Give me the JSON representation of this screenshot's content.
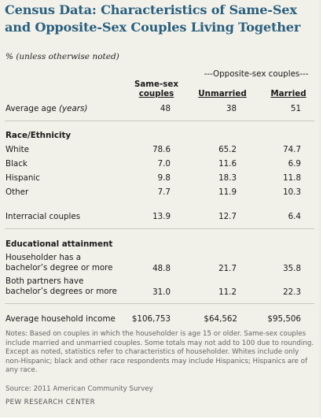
{
  "title": "Census Data: Characteristics of Same-Sex and Opposite-Sex Couples Living Together",
  "units_note": "% (unless otherwise noted)",
  "group_header": "---Opposite-sex couples---",
  "columns": {
    "same_sex_1": "Same-sex",
    "same_sex_2": "couples",
    "unmarried": "Unmarried",
    "married": "Married"
  },
  "rows": {
    "avg_age": {
      "label": "Average age",
      "label_unit": "(years)",
      "same_sex": "48",
      "unmarried": "38",
      "married": "51"
    },
    "race_header": "Race/Ethnicity",
    "white": {
      "label": "White",
      "same_sex": "78.6",
      "unmarried": "65.2",
      "married": "74.7"
    },
    "black": {
      "label": "Black",
      "same_sex": "7.0",
      "unmarried": "11.6",
      "married": "6.9"
    },
    "hispanic": {
      "label": "Hispanic",
      "same_sex": "9.8",
      "unmarried": "18.3",
      "married": "11.8"
    },
    "other": {
      "label": "Other",
      "same_sex": "7.7",
      "unmarried": "11.9",
      "married": "10.3"
    },
    "interracial": {
      "label": "Interracial couples",
      "same_sex": "13.9",
      "unmarried": "12.7",
      "married": "6.4"
    },
    "edu_header": "Educational attainment",
    "householder_ba": {
      "label_1": "Householder has a",
      "label_2": "bachelor’s degree or more",
      "same_sex": "48.8",
      "unmarried": "21.7",
      "married": "35.8"
    },
    "both_ba": {
      "label_1": "Both partners have",
      "label_2": "bachelor’s degrees or more",
      "same_sex": "31.0",
      "unmarried": "11.2",
      "married": "22.3"
    },
    "income": {
      "label": "Average household income",
      "same_sex": "$106,753",
      "unmarried": "$64,562",
      "married": "$95,506"
    }
  },
  "notes": "Notes: Based on couples in which the householder is age 15 or older. Same-sex couples include married and unmarried couples. Some totals may not add to 100 due to rounding. Except as noted, statistics refer to characteristics of householder. Whites include only non-Hispanic; black and other race respondents may include Hispanics; Hispanics are of any race.",
  "source": "Source: 2011 American Community Survey",
  "org": "PEW RESEARCH CENTER"
}
